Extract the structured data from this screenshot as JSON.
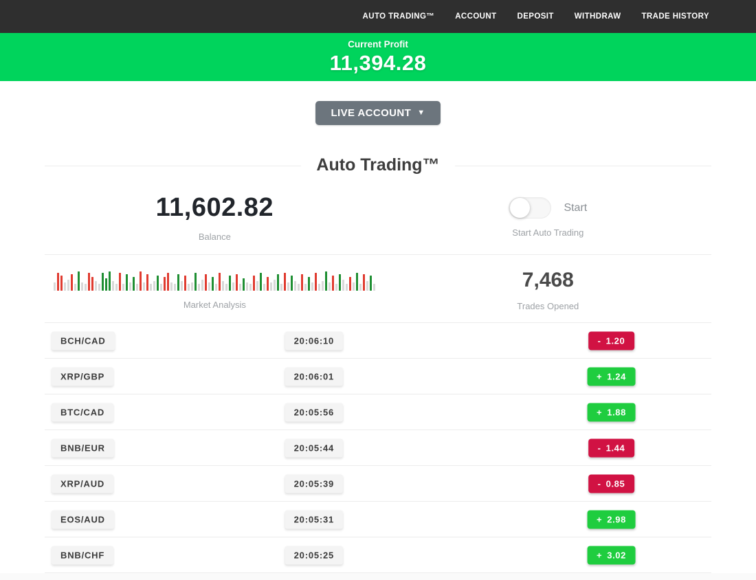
{
  "nav": {
    "items": [
      {
        "label": "AUTO TRADING™"
      },
      {
        "label": "ACCOUNT"
      },
      {
        "label": "DEPOSIT"
      },
      {
        "label": "WITHDRAW"
      },
      {
        "label": "TRADE HISTORY"
      }
    ]
  },
  "banner": {
    "label": "Current Profit",
    "value": "11,394.28"
  },
  "account_button": {
    "label": "LIVE ACCOUNT",
    "caret": "▼"
  },
  "section": {
    "title": "Auto Trading™"
  },
  "stats": {
    "balance": {
      "value": "11,602.82",
      "label": "Balance"
    },
    "auto_trading": {
      "toggle_state": "off",
      "toggle_label": "Start",
      "caption": "Start Auto Trading"
    },
    "market_analysis": {
      "label": "Market Analysis"
    },
    "trades_opened": {
      "value": "7,468",
      "label": "Trades Opened"
    }
  },
  "chart_data": {
    "type": "bar",
    "title": "Market Analysis",
    "note": "decorative ticker strip, bottom-aligned bars; colors n=neutral gray, r=red, g=green; heights in px of 30px max",
    "bar_colors": {
      "n": "#d9d9d9",
      "r": "#e03b30",
      "g": "#1f8f33"
    },
    "bars": [
      "n12",
      "r26",
      "r22",
      "n12",
      "n16",
      "r24",
      "n10",
      "g28",
      "n12",
      "n10",
      "r26",
      "r20",
      "n14",
      "n10",
      "g26",
      "g18",
      "g28",
      "n14",
      "n10",
      "r26",
      "n10",
      "g24",
      "n12",
      "g20",
      "n10",
      "r28",
      "n12",
      "r24",
      "n10",
      "n14",
      "g22",
      "n10",
      "r20",
      "r26",
      "n12",
      "n10",
      "g24",
      "n14",
      "r22",
      "n10",
      "n12",
      "g26",
      "n10",
      "n16",
      "r24",
      "n12",
      "g20",
      "n10",
      "r26",
      "n14",
      "n10",
      "g22",
      "n12",
      "r24",
      "n10",
      "g18",
      "n12",
      "n10",
      "r22",
      "n14",
      "g26",
      "n10",
      "r20",
      "n12",
      "n16",
      "g24",
      "n10",
      "r26",
      "n12",
      "g22",
      "n14",
      "n10",
      "r24",
      "n10",
      "g20",
      "n12",
      "r26",
      "n10",
      "n14",
      "g28",
      "n12",
      "r22",
      "n10",
      "g24",
      "n16",
      "n10",
      "r20",
      "n12",
      "g26",
      "n10",
      "r24",
      "n14",
      "g22",
      "n10"
    ]
  },
  "trades": {
    "rows": [
      {
        "pair": "BCH/CAD",
        "time": "20:06:10",
        "sign": "-",
        "value": "1.20",
        "direction": "loss"
      },
      {
        "pair": "XRP/GBP",
        "time": "20:06:01",
        "sign": "+",
        "value": "1.24",
        "direction": "gain"
      },
      {
        "pair": "BTC/CAD",
        "time": "20:05:56",
        "sign": "+",
        "value": "1.88",
        "direction": "gain"
      },
      {
        "pair": "BNB/EUR",
        "time": "20:05:44",
        "sign": "-",
        "value": "1.44",
        "direction": "loss"
      },
      {
        "pair": "XRP/AUD",
        "time": "20:05:39",
        "sign": "-",
        "value": "0.85",
        "direction": "loss"
      },
      {
        "pair": "EOS/AUD",
        "time": "20:05:31",
        "sign": "+",
        "value": "2.98",
        "direction": "gain"
      },
      {
        "pair": "BNB/CHF",
        "time": "20:05:25",
        "sign": "+",
        "value": "3.02",
        "direction": "gain"
      }
    ]
  },
  "colors": {
    "nav_bg": "#2f2f2f",
    "banner_green": "#00d45c",
    "gain_green": "#1fcd3f",
    "loss_red": "#d11243",
    "button_gray": "#6c757d"
  }
}
